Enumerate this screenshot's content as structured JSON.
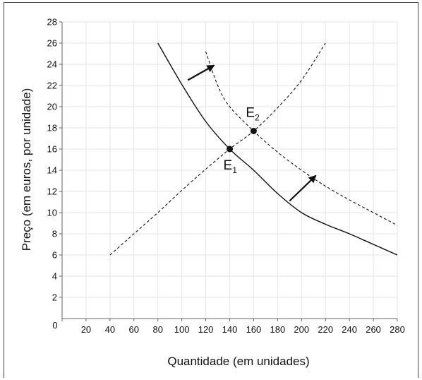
{
  "chart_data": {
    "type": "line",
    "title": "",
    "xlabel": "Quantidade (em unidades)",
    "ylabel": "Preço (em euros, por unidade)",
    "xlim": [
      0,
      280
    ],
    "ylim": [
      0,
      28
    ],
    "x_ticks": [
      "0",
      "20",
      "40",
      "60",
      "80",
      "100",
      "120",
      "140",
      "160",
      "180",
      "200",
      "220",
      "240",
      "260",
      "280"
    ],
    "y_ticks": [
      "2",
      "4",
      "6",
      "8",
      "10",
      "12",
      "14",
      "16",
      "18",
      "20",
      "22",
      "24",
      "26",
      "28"
    ],
    "grid": true,
    "legend": "none",
    "colors": {
      "curve": "#111111",
      "grid": "#e6e6e6",
      "axis": "#666666",
      "text": "#111111"
    },
    "series": [
      {
        "style": "solid",
        "points": [
          [
            80,
            26
          ],
          [
            100,
            22.1
          ],
          [
            120,
            18.6
          ],
          [
            140,
            16
          ],
          [
            160,
            14
          ],
          [
            180,
            11.8
          ],
          [
            200,
            10
          ],
          [
            220,
            8.9
          ],
          [
            240,
            8
          ],
          [
            260,
            7
          ],
          [
            280,
            6
          ]
        ]
      },
      {
        "style": "dashed",
        "points": [
          [
            40,
            6
          ],
          [
            60,
            8
          ],
          [
            80,
            10
          ],
          [
            100,
            12.1
          ],
          [
            120,
            14.1
          ],
          [
            140,
            16
          ],
          [
            160,
            17.7
          ],
          [
            180,
            19.9
          ],
          [
            200,
            22.5
          ],
          [
            220,
            26
          ]
        ]
      },
      {
        "style": "dashed",
        "points": [
          [
            120,
            25.2
          ],
          [
            130,
            22
          ],
          [
            140,
            20
          ],
          [
            160,
            17.7
          ],
          [
            180,
            15.7
          ],
          [
            200,
            14
          ],
          [
            220,
            12.5
          ],
          [
            240,
            11.2
          ],
          [
            260,
            10
          ],
          [
            280,
            8.8
          ]
        ]
      }
    ],
    "points": [
      {
        "label": "E",
        "sub": "1",
        "x": 140,
        "y": 16
      },
      {
        "label": "E",
        "sub": "2",
        "x": 160,
        "y": 17.7
      }
    ],
    "arrows": [
      {
        "from": [
          105,
          22.5
        ],
        "to": [
          127,
          23.9
        ]
      },
      {
        "from": [
          190,
          11.1
        ],
        "to": [
          212,
          13.5
        ]
      }
    ]
  }
}
